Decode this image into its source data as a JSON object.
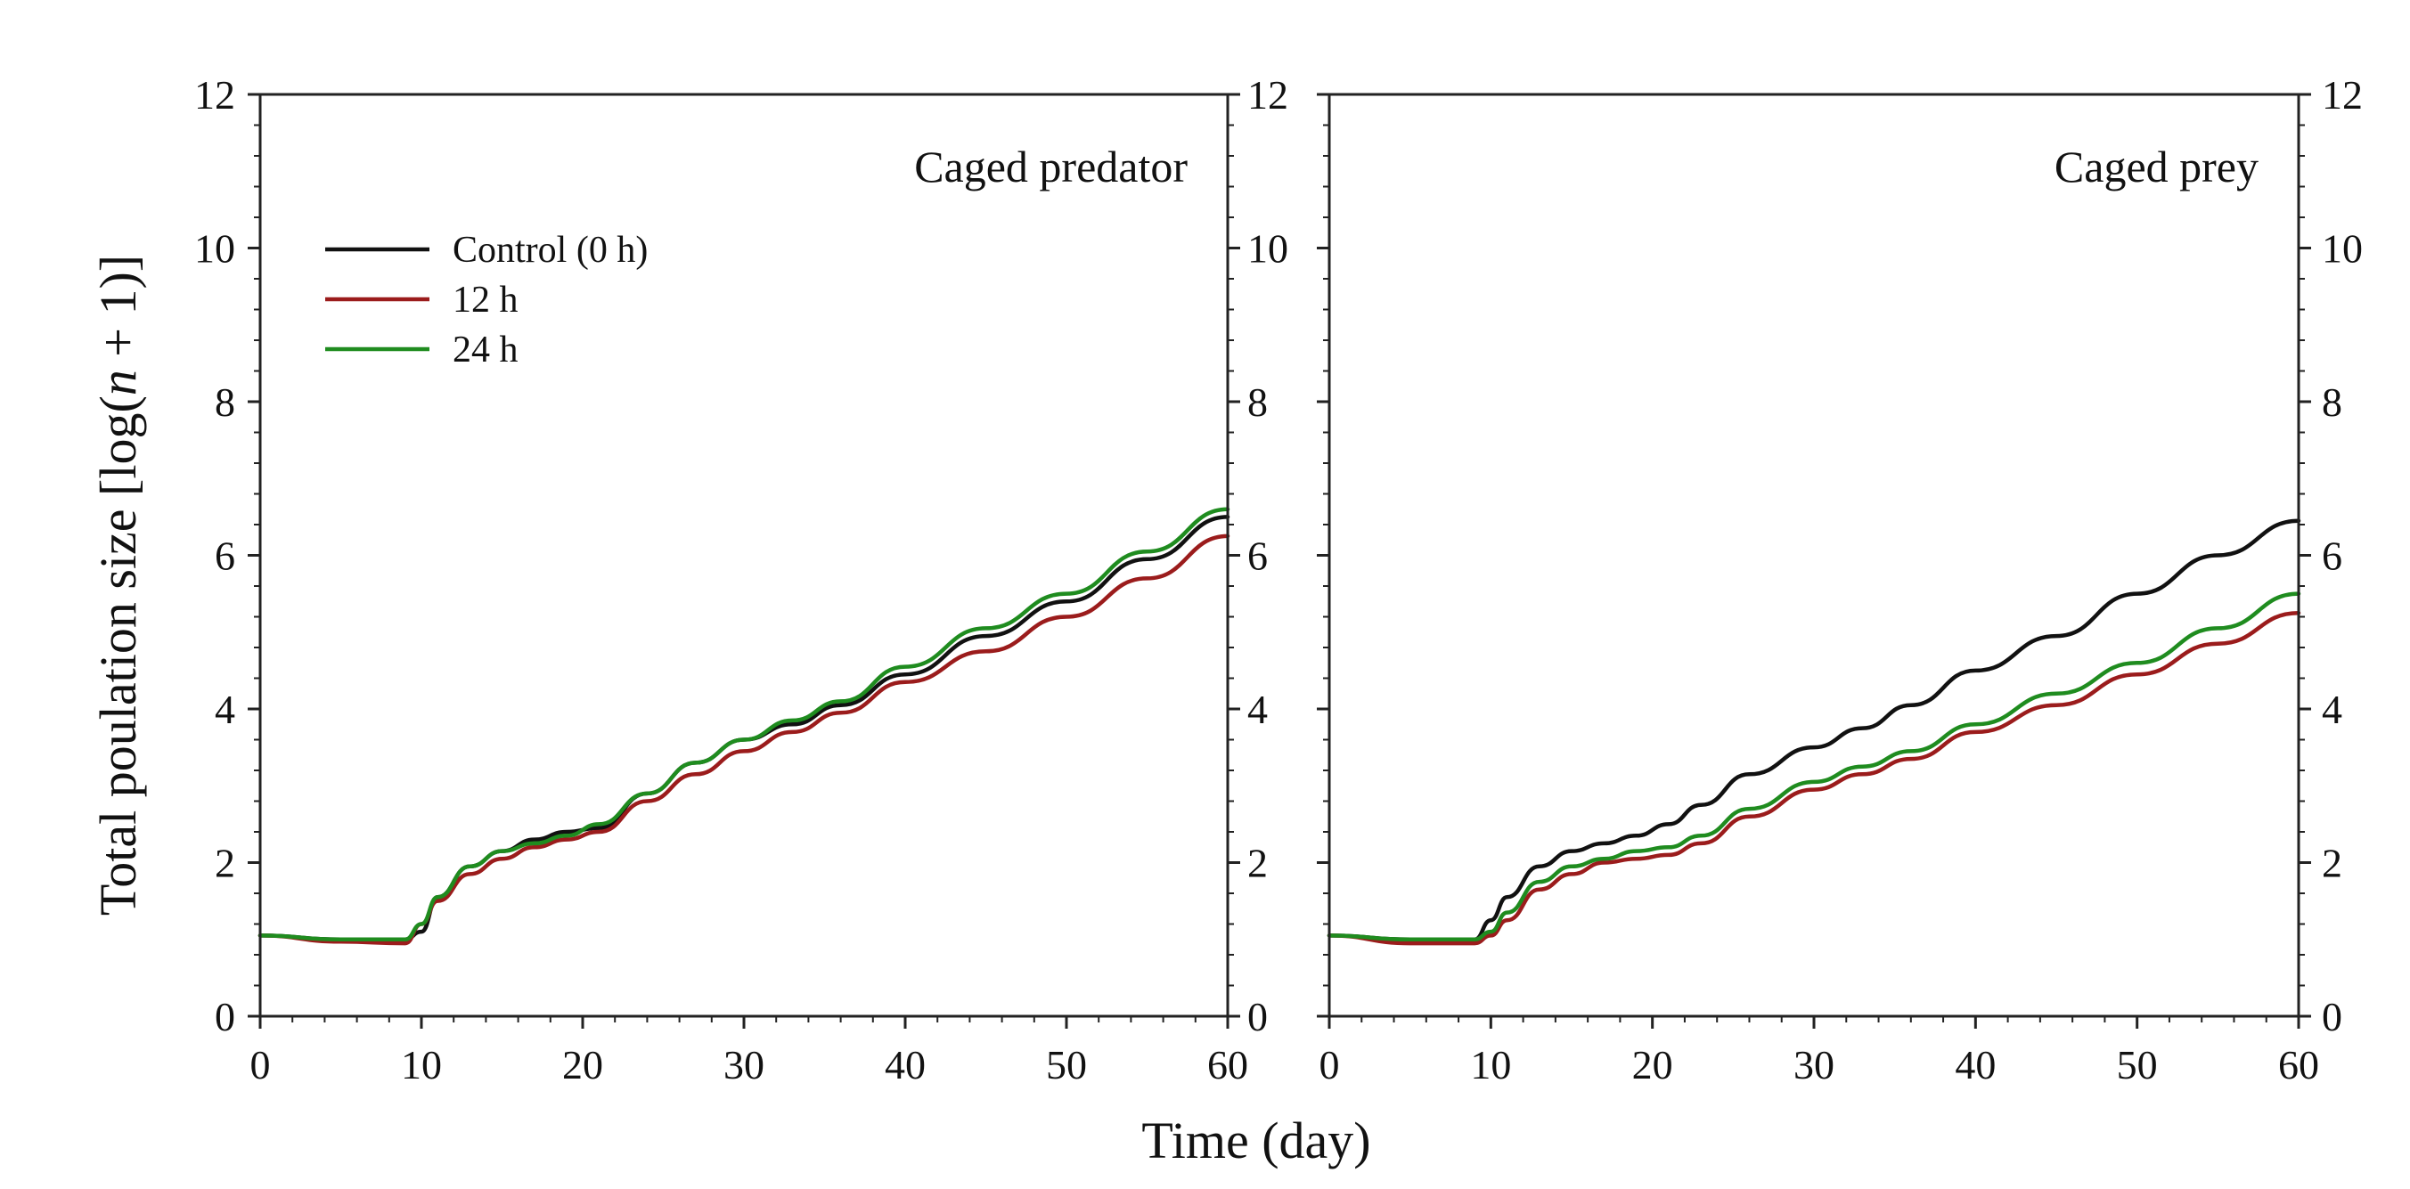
{
  "figure": {
    "ylabel": "Total poulation size [log(n + 1)]",
    "xlabel": "Time (day)"
  },
  "legend": {
    "entries": [
      {
        "label": "Control (0 h)",
        "color": "#111111"
      },
      {
        "label": "12 h",
        "color": "#9b1c1c"
      },
      {
        "label": "24 h",
        "color": "#1f8c1f"
      }
    ]
  },
  "chart_data": [
    {
      "type": "line",
      "title": "Caged predator",
      "xlabel": "Time (day)",
      "ylabel": "Total poulation size [log(n + 1)]",
      "xlim": [
        0,
        60
      ],
      "ylim": [
        0,
        12
      ],
      "xticks": [
        0,
        10,
        20,
        30,
        40,
        50,
        60
      ],
      "yticks": [
        0,
        2,
        4,
        6,
        8,
        10,
        12
      ],
      "series": [
        {
          "name": "Control (0 h)",
          "color": "#111111",
          "points": [
            [
              0,
              1.05
            ],
            [
              5,
              1.0
            ],
            [
              9,
              1.0
            ],
            [
              10,
              1.1
            ],
            [
              11,
              1.55
            ],
            [
              13,
              1.95
            ],
            [
              15,
              2.15
            ],
            [
              17,
              2.3
            ],
            [
              19,
              2.4
            ],
            [
              21,
              2.45
            ],
            [
              24,
              2.9
            ],
            [
              27,
              3.3
            ],
            [
              30,
              3.6
            ],
            [
              33,
              3.8
            ],
            [
              36,
              4.05
            ],
            [
              40,
              4.45
            ],
            [
              45,
              4.95
            ],
            [
              50,
              5.4
            ],
            [
              55,
              5.95
            ],
            [
              60,
              6.5
            ]
          ]
        },
        {
          "name": "12 h",
          "color": "#9b1c1c",
          "points": [
            [
              0,
              1.05
            ],
            [
              5,
              0.97
            ],
            [
              9,
              0.95
            ],
            [
              10,
              1.2
            ],
            [
              11,
              1.5
            ],
            [
              13,
              1.85
            ],
            [
              15,
              2.05
            ],
            [
              17,
              2.2
            ],
            [
              19,
              2.3
            ],
            [
              21,
              2.4
            ],
            [
              24,
              2.8
            ],
            [
              27,
              3.15
            ],
            [
              30,
              3.45
            ],
            [
              33,
              3.7
            ],
            [
              36,
              3.95
            ],
            [
              40,
              4.35
            ],
            [
              45,
              4.75
            ],
            [
              50,
              5.2
            ],
            [
              55,
              5.7
            ],
            [
              60,
              6.25
            ]
          ]
        },
        {
          "name": "24 h",
          "color": "#1f8c1f",
          "points": [
            [
              0,
              1.05
            ],
            [
              5,
              1.0
            ],
            [
              9,
              1.0
            ],
            [
              10,
              1.2
            ],
            [
              11,
              1.55
            ],
            [
              13,
              1.95
            ],
            [
              15,
              2.15
            ],
            [
              17,
              2.25
            ],
            [
              19,
              2.35
            ],
            [
              21,
              2.5
            ],
            [
              24,
              2.9
            ],
            [
              27,
              3.3
            ],
            [
              30,
              3.6
            ],
            [
              33,
              3.85
            ],
            [
              36,
              4.1
            ],
            [
              40,
              4.55
            ],
            [
              45,
              5.05
            ],
            [
              50,
              5.5
            ],
            [
              55,
              6.05
            ],
            [
              60,
              6.6
            ]
          ]
        }
      ]
    },
    {
      "type": "line",
      "title": "Caged prey",
      "xlabel": "Time (day)",
      "ylabel": "",
      "xlim": [
        0,
        60
      ],
      "ylim": [
        0,
        12
      ],
      "xticks": [
        0,
        10,
        20,
        30,
        40,
        50,
        60
      ],
      "yticks": [
        0,
        2,
        4,
        6,
        8,
        10,
        12
      ],
      "series": [
        {
          "name": "Control (0 h)",
          "color": "#111111",
          "points": [
            [
              0,
              1.05
            ],
            [
              5,
              1.0
            ],
            [
              9,
              1.0
            ],
            [
              10,
              1.25
            ],
            [
              11,
              1.55
            ],
            [
              13,
              1.95
            ],
            [
              15,
              2.15
            ],
            [
              17,
              2.25
            ],
            [
              19,
              2.35
            ],
            [
              21,
              2.5
            ],
            [
              23,
              2.75
            ],
            [
              26,
              3.15
            ],
            [
              30,
              3.5
            ],
            [
              33,
              3.75
            ],
            [
              36,
              4.05
            ],
            [
              40,
              4.5
            ],
            [
              45,
              4.95
            ],
            [
              50,
              5.5
            ],
            [
              55,
              6.0
            ],
            [
              60,
              6.45
            ]
          ]
        },
        {
          "name": "12 h",
          "color": "#9b1c1c",
          "points": [
            [
              0,
              1.05
            ],
            [
              5,
              0.95
            ],
            [
              9,
              0.95
            ],
            [
              10,
              1.05
            ],
            [
              11,
              1.25
            ],
            [
              13,
              1.65
            ],
            [
              15,
              1.85
            ],
            [
              17,
              2.0
            ],
            [
              19,
              2.05
            ],
            [
              21,
              2.1
            ],
            [
              23,
              2.25
            ],
            [
              26,
              2.6
            ],
            [
              30,
              2.95
            ],
            [
              33,
              3.15
            ],
            [
              36,
              3.35
            ],
            [
              40,
              3.7
            ],
            [
              45,
              4.05
            ],
            [
              50,
              4.45
            ],
            [
              55,
              4.85
            ],
            [
              60,
              5.25
            ]
          ]
        },
        {
          "name": "24 h",
          "color": "#1f8c1f",
          "points": [
            [
              0,
              1.05
            ],
            [
              5,
              1.0
            ],
            [
              9,
              1.0
            ],
            [
              10,
              1.1
            ],
            [
              11,
              1.35
            ],
            [
              13,
              1.75
            ],
            [
              15,
              1.95
            ],
            [
              17,
              2.05
            ],
            [
              19,
              2.15
            ],
            [
              21,
              2.2
            ],
            [
              23,
              2.35
            ],
            [
              26,
              2.7
            ],
            [
              30,
              3.05
            ],
            [
              33,
              3.25
            ],
            [
              36,
              3.45
            ],
            [
              40,
              3.8
            ],
            [
              45,
              4.2
            ],
            [
              50,
              4.6
            ],
            [
              55,
              5.05
            ],
            [
              60,
              5.5
            ]
          ]
        }
      ]
    }
  ]
}
